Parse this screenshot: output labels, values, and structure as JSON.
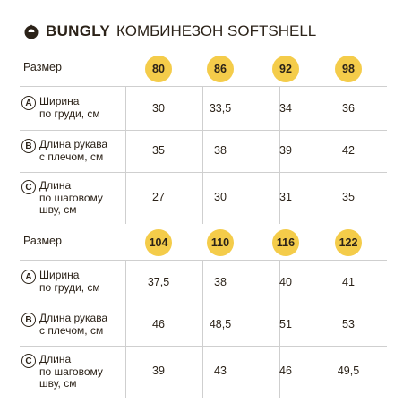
{
  "header": {
    "brand": "BUNGLY",
    "title": "КОМБИНЕЗОН SOFTSHELL",
    "logo_icon": "bungly-logo-icon"
  },
  "tables": [
    {
      "size_label": "Размер",
      "sizes": [
        "80",
        "86",
        "92",
        "98"
      ],
      "rows": [
        {
          "letter": "A",
          "line1": "Ширина",
          "line2": "по груди, см",
          "line3": "",
          "values": [
            "30",
            "33,5",
            "34",
            "36"
          ]
        },
        {
          "letter": "B",
          "line1": "Длина рукава",
          "line2": "с плечом, см",
          "line3": "",
          "values": [
            "35",
            "38",
            "39",
            "42"
          ]
        },
        {
          "letter": "C",
          "line1": "Длина",
          "line2": "по шаговому",
          "line3": "шву, см",
          "values": [
            "27",
            "30",
            "31",
            "35"
          ]
        }
      ]
    },
    {
      "size_label": "Размер",
      "sizes": [
        "104",
        "110",
        "116",
        "122"
      ],
      "rows": [
        {
          "letter": "A",
          "line1": "Ширина",
          "line2": "по груди, см",
          "line3": "",
          "values": [
            "37,5",
            "38",
            "40",
            "41"
          ]
        },
        {
          "letter": "B",
          "line1": "Длина рукава",
          "line2": "с плечом, см",
          "line3": "",
          "values": [
            "46",
            "48,5",
            "51",
            "53"
          ]
        },
        {
          "letter": "C",
          "line1": "Длина",
          "line2": "по шаговому",
          "line3": "шву, см",
          "values": [
            "39",
            "43",
            "46",
            "49,5"
          ]
        }
      ]
    }
  ],
  "colors": {
    "badge": "#f4cc4a",
    "text": "#2b2218",
    "grid": "#cfcfcf"
  }
}
